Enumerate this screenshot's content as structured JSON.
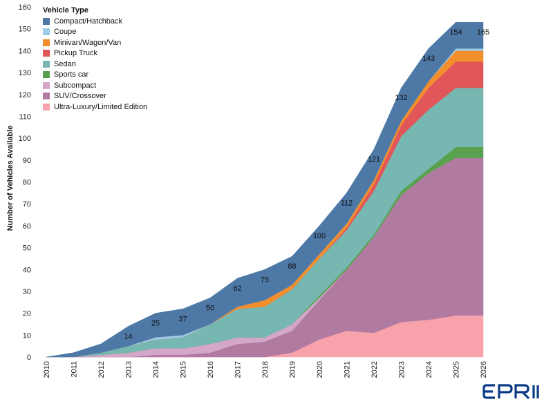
{
  "chart_data": {
    "type": "area",
    "stacked": true,
    "ylabel": "Number of Vehicles Available",
    "ylim": [
      0,
      160
    ],
    "yticks": [
      0,
      10,
      20,
      30,
      40,
      50,
      60,
      70,
      80,
      90,
      100,
      110,
      120,
      130,
      140,
      150,
      160
    ],
    "categories": [
      "2010",
      "2011",
      "2012",
      "2013",
      "2014",
      "2015",
      "2016",
      "2017",
      "2018",
      "2019",
      "2020",
      "2021",
      "2022",
      "2023",
      "2024",
      "2025",
      "2026"
    ],
    "legend_title": "Vehicle Type",
    "legend_position": "top-left",
    "grid": false,
    "series": [
      {
        "name": "Ultra-Luxury/Limited Edition",
        "color": "#f8a2ab",
        "values": [
          0,
          0,
          0,
          0,
          0,
          0,
          0,
          0,
          0,
          2,
          8,
          12,
          11,
          16,
          17,
          19,
          19
        ]
      },
      {
        "name": "SUV/Crossover",
        "color": "#b07aa1",
        "values": [
          0,
          0,
          0,
          0,
          1,
          1,
          2,
          6,
          7,
          10,
          18,
          28,
          44,
          58,
          67,
          72,
          72
        ]
      },
      {
        "name": "Subcompact",
        "color": "#d4a6c8",
        "values": [
          0,
          0,
          1,
          2,
          3,
          3,
          4,
          3,
          2,
          3,
          1,
          0,
          0,
          0,
          0,
          0,
          0
        ]
      },
      {
        "name": "Sports car",
        "color": "#59a14f",
        "values": [
          0,
          0,
          0,
          0,
          0,
          0,
          0,
          0,
          0,
          0,
          1,
          1,
          1,
          2,
          2,
          5,
          5
        ]
      },
      {
        "name": "Sedan",
        "color": "#76b7b2",
        "values": [
          0,
          0,
          1,
          3,
          4,
          5,
          9,
          13,
          14,
          16,
          17,
          17,
          20,
          25,
          27,
          27,
          27
        ]
      },
      {
        "name": "Pickup Truck",
        "color": "#e15759",
        "values": [
          0,
          0,
          0,
          0,
          0,
          0,
          0,
          0,
          0,
          0,
          0,
          1,
          3,
          5,
          10,
          12,
          12
        ]
      },
      {
        "name": "Minivan/Wagon/Van",
        "color": "#f28e2b",
        "values": [
          0,
          0,
          0,
          0,
          0,
          0,
          0,
          1,
          3,
          2,
          2,
          2,
          2,
          2,
          3,
          5,
          5
        ]
      },
      {
        "name": "Coupe",
        "color": "#a0cbe8",
        "values": [
          0,
          0,
          0,
          0,
          1,
          1,
          0,
          0,
          0,
          0,
          0,
          0,
          0,
          0,
          0,
          1,
          1
        ]
      },
      {
        "name": "Compact/Hatchback",
        "color": "#4e79a7",
        "values": [
          0,
          2,
          4,
          9,
          11,
          12,
          12,
          13,
          14,
          13,
          13,
          14,
          14,
          15,
          15,
          12,
          12
        ]
      }
    ],
    "data_labels": [
      {
        "x": "2013",
        "text": "14"
      },
      {
        "x": "2014",
        "text": "25"
      },
      {
        "x": "2015",
        "text": "37"
      },
      {
        "x": "2016",
        "text": "50"
      },
      {
        "x": "2017",
        "text": "62"
      },
      {
        "x": "2018",
        "text": "75"
      },
      {
        "x": "2019",
        "text": "88"
      },
      {
        "x": "2020",
        "text": "100"
      },
      {
        "x": "2021",
        "text": "112"
      },
      {
        "x": "2022",
        "text": "121"
      },
      {
        "x": "2023",
        "text": "132"
      },
      {
        "x": "2024",
        "text": "143"
      },
      {
        "x": "2025",
        "text": "154"
      },
      {
        "x": "2026",
        "text": "165"
      }
    ]
  },
  "legend_order": [
    "Compact/Hatchback",
    "Coupe",
    "Minivan/Wagon/Van",
    "Pickup Truck",
    "Sedan",
    "Sports car",
    "Subcompact",
    "SUV/Crossover",
    "Ultra-Luxury/Limited Edition"
  ],
  "logo": {
    "text": "EPRI",
    "color": "#0a3b86"
  }
}
